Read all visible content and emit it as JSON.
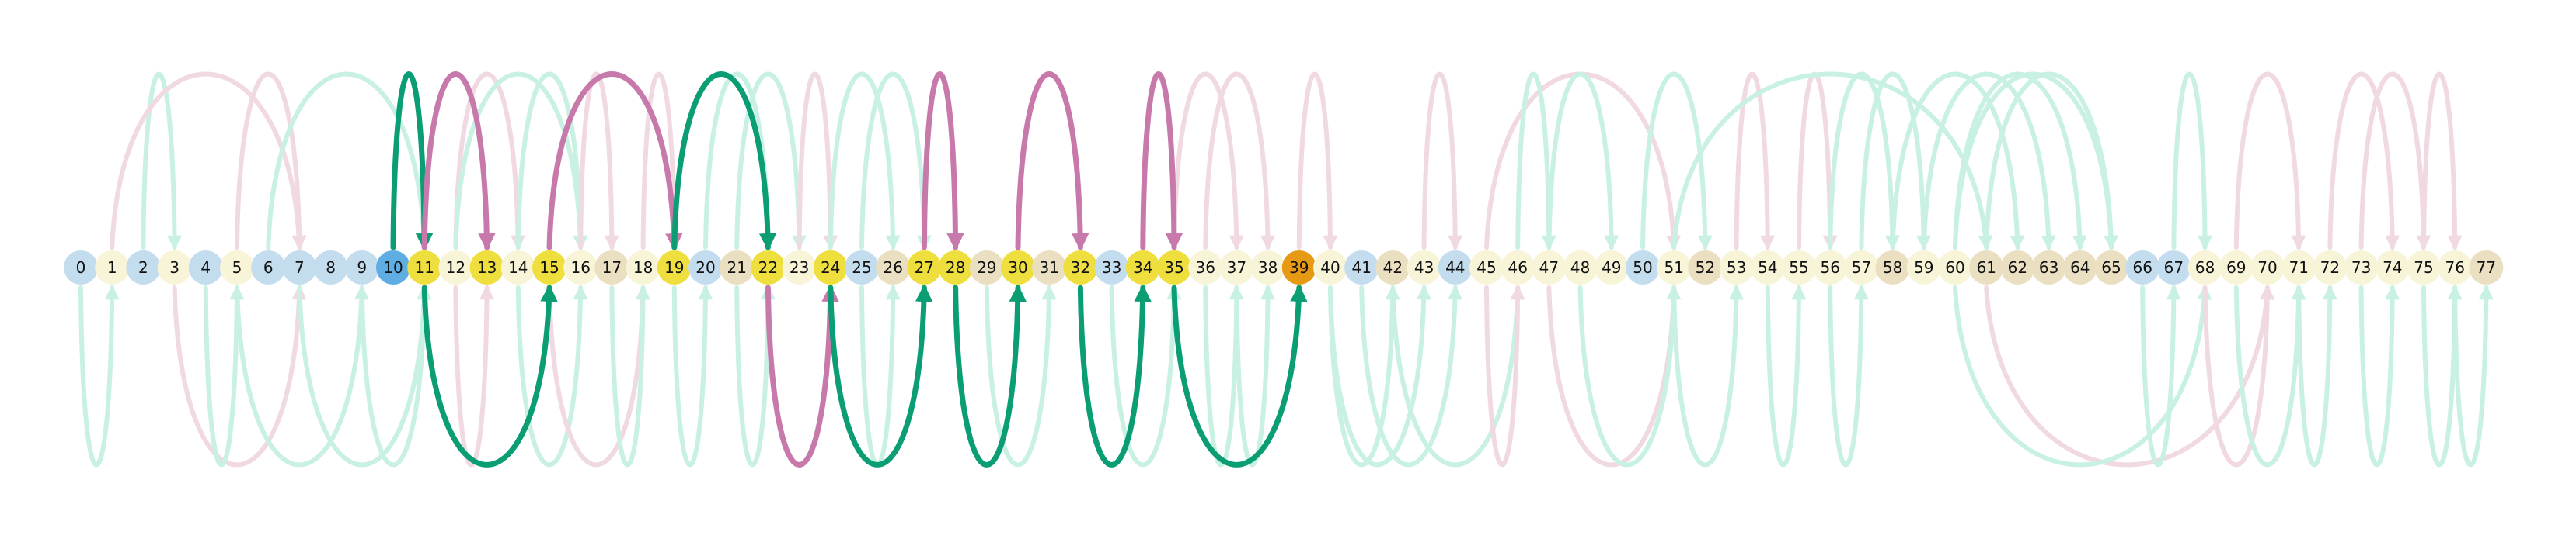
{
  "colors": {
    "node_blue": "#c3dcee",
    "node_cream": "#f7f4d8",
    "node_tan": "#ebdfc2",
    "node_yellow": "#efdf3e",
    "node_bright_blue": "#5eaee3",
    "node_orange": "#e69a13",
    "arc_green_strong": "#0b9e74",
    "arc_green_light": "#c8f1e3",
    "arc_pink_strong": "#c879ac",
    "arc_pink_light": "#f1d9e4",
    "label_text": "#111111"
  },
  "nodes": [
    {
      "label": "0",
      "color": "blue"
    },
    {
      "label": "1",
      "color": "cream"
    },
    {
      "label": "2",
      "color": "blue"
    },
    {
      "label": "3",
      "color": "cream"
    },
    {
      "label": "4",
      "color": "blue"
    },
    {
      "label": "5",
      "color": "cream"
    },
    {
      "label": "6",
      "color": "blue"
    },
    {
      "label": "7",
      "color": "blue"
    },
    {
      "label": "8",
      "color": "blue"
    },
    {
      "label": "9",
      "color": "blue"
    },
    {
      "label": "10",
      "color": "bright_blue"
    },
    {
      "label": "11",
      "color": "yellow"
    },
    {
      "label": "12",
      "color": "cream"
    },
    {
      "label": "13",
      "color": "yellow"
    },
    {
      "label": "14",
      "color": "cream"
    },
    {
      "label": "15",
      "color": "yellow"
    },
    {
      "label": "16",
      "color": "cream"
    },
    {
      "label": "17",
      "color": "tan"
    },
    {
      "label": "18",
      "color": "cream"
    },
    {
      "label": "19",
      "color": "yellow"
    },
    {
      "label": "20",
      "color": "blue"
    },
    {
      "label": "21",
      "color": "tan"
    },
    {
      "label": "22",
      "color": "yellow"
    },
    {
      "label": "23",
      "color": "cream"
    },
    {
      "label": "24",
      "color": "yellow"
    },
    {
      "label": "25",
      "color": "blue"
    },
    {
      "label": "26",
      "color": "tan"
    },
    {
      "label": "27",
      "color": "yellow"
    },
    {
      "label": "28",
      "color": "yellow"
    },
    {
      "label": "29",
      "color": "tan"
    },
    {
      "label": "30",
      "color": "yellow"
    },
    {
      "label": "31",
      "color": "tan"
    },
    {
      "label": "32",
      "color": "yellow"
    },
    {
      "label": "33",
      "color": "blue"
    },
    {
      "label": "34",
      "color": "yellow"
    },
    {
      "label": "35",
      "color": "yellow"
    },
    {
      "label": "36",
      "color": "cream"
    },
    {
      "label": "37",
      "color": "cream"
    },
    {
      "label": "38",
      "color": "cream"
    },
    {
      "label": "39",
      "color": "orange"
    },
    {
      "label": "40",
      "color": "cream"
    },
    {
      "label": "41",
      "color": "blue"
    },
    {
      "label": "42",
      "color": "tan"
    },
    {
      "label": "43",
      "color": "cream"
    },
    {
      "label": "44",
      "color": "blue"
    },
    {
      "label": "45",
      "color": "cream"
    },
    {
      "label": "46",
      "color": "cream"
    },
    {
      "label": "47",
      "color": "cream"
    },
    {
      "label": "48",
      "color": "cream"
    },
    {
      "label": "49",
      "color": "cream"
    },
    {
      "label": "50",
      "color": "blue"
    },
    {
      "label": "51",
      "color": "cream"
    },
    {
      "label": "52",
      "color": "tan"
    },
    {
      "label": "53",
      "color": "cream"
    },
    {
      "label": "54",
      "color": "cream"
    },
    {
      "label": "55",
      "color": "cream"
    },
    {
      "label": "56",
      "color": "cream"
    },
    {
      "label": "57",
      "color": "cream"
    },
    {
      "label": "58",
      "color": "tan"
    },
    {
      "label": "59",
      "color": "cream"
    },
    {
      "label": "60",
      "color": "cream"
    },
    {
      "label": "61",
      "color": "tan"
    },
    {
      "label": "62",
      "color": "tan"
    },
    {
      "label": "63",
      "color": "tan"
    },
    {
      "label": "64",
      "color": "tan"
    },
    {
      "label": "65",
      "color": "tan"
    },
    {
      "label": "66",
      "color": "blue"
    },
    {
      "label": "67",
      "color": "blue"
    },
    {
      "label": "68",
      "color": "cream"
    },
    {
      "label": "69",
      "color": "cream"
    },
    {
      "label": "70",
      "color": "cream"
    },
    {
      "label": "71",
      "color": "cream"
    },
    {
      "label": "72",
      "color": "cream"
    },
    {
      "label": "73",
      "color": "cream"
    },
    {
      "label": "74",
      "color": "cream"
    },
    {
      "label": "75",
      "color": "cream"
    },
    {
      "label": "76",
      "color": "cream"
    },
    {
      "label": "77",
      "color": "tan"
    }
  ],
  "arcs": [
    {
      "from": 10,
      "to": 11,
      "side": "top",
      "style": "green_strong"
    },
    {
      "from": 11,
      "to": 15,
      "side": "bottom",
      "style": "green_strong"
    },
    {
      "from": 11,
      "to": 13,
      "side": "top",
      "style": "pink_strong"
    },
    {
      "from": 15,
      "to": 19,
      "side": "top",
      "style": "pink_strong"
    },
    {
      "from": 19,
      "to": 22,
      "side": "top",
      "style": "green_strong"
    },
    {
      "from": 22,
      "to": 24,
      "side": "bottom",
      "style": "pink_strong"
    },
    {
      "from": 24,
      "to": 27,
      "side": "bottom",
      "style": "green_strong"
    },
    {
      "from": 27,
      "to": 28,
      "side": "top",
      "style": "pink_strong"
    },
    {
      "from": 28,
      "to": 30,
      "side": "bottom",
      "style": "green_strong"
    },
    {
      "from": 30,
      "to": 32,
      "side": "top",
      "style": "pink_strong"
    },
    {
      "from": 32,
      "to": 34,
      "side": "bottom",
      "style": "green_strong"
    },
    {
      "from": 34,
      "to": 35,
      "side": "top",
      "style": "pink_strong"
    },
    {
      "from": 35,
      "to": 39,
      "side": "bottom",
      "style": "green_strong"
    },
    {
      "from": 2,
      "to": 3,
      "side": "top",
      "style": "green_light"
    },
    {
      "from": 1,
      "to": 7,
      "side": "top",
      "style": "pink_light"
    },
    {
      "from": 5,
      "to": 7,
      "side": "top",
      "style": "pink_light"
    },
    {
      "from": 6,
      "to": 11,
      "side": "top",
      "style": "green_light"
    },
    {
      "from": 12,
      "to": 14,
      "side": "top",
      "style": "pink_light"
    },
    {
      "from": 12,
      "to": 16,
      "side": "top",
      "style": "green_light"
    },
    {
      "from": 14,
      "to": 16,
      "side": "top",
      "style": "green_light"
    },
    {
      "from": 16,
      "to": 17,
      "side": "top",
      "style": "pink_light"
    },
    {
      "from": 18,
      "to": 19,
      "side": "top",
      "style": "pink_light"
    },
    {
      "from": 20,
      "to": 22,
      "side": "top",
      "style": "green_light"
    },
    {
      "from": 21,
      "to": 23,
      "side": "top",
      "style": "green_light"
    },
    {
      "from": 23,
      "to": 24,
      "side": "top",
      "style": "pink_light"
    },
    {
      "from": 24,
      "to": 26,
      "side": "top",
      "style": "green_light"
    },
    {
      "from": 25,
      "to": 27,
      "side": "top",
      "style": "green_light"
    },
    {
      "from": 35,
      "to": 37,
      "side": "top",
      "style": "pink_light"
    },
    {
      "from": 36,
      "to": 38,
      "side": "top",
      "style": "pink_light"
    },
    {
      "from": 39,
      "to": 40,
      "side": "top",
      "style": "pink_light"
    },
    {
      "from": 43,
      "to": 44,
      "side": "top",
      "style": "pink_light"
    },
    {
      "from": 45,
      "to": 51,
      "side": "top",
      "style": "pink_light"
    },
    {
      "from": 46,
      "to": 47,
      "side": "top",
      "style": "green_light"
    },
    {
      "from": 47,
      "to": 49,
      "side": "top",
      "style": "green_light"
    },
    {
      "from": 50,
      "to": 52,
      "side": "top",
      "style": "green_light"
    },
    {
      "from": 53,
      "to": 54,
      "side": "top",
      "style": "pink_light"
    },
    {
      "from": 55,
      "to": 56,
      "side": "top",
      "style": "pink_light"
    },
    {
      "from": 56,
      "to": 58,
      "side": "top",
      "style": "green_light"
    },
    {
      "from": 57,
      "to": 59,
      "side": "top",
      "style": "green_light"
    },
    {
      "from": 51,
      "to": 61,
      "side": "top",
      "style": "green_light"
    },
    {
      "from": 58,
      "to": 62,
      "side": "top",
      "style": "green_light"
    },
    {
      "from": 59,
      "to": 63,
      "side": "top",
      "style": "green_light"
    },
    {
      "from": 60,
      "to": 64,
      "side": "top",
      "style": "green_light"
    },
    {
      "from": 60,
      "to": 65,
      "side": "top",
      "style": "green_light"
    },
    {
      "from": 61,
      "to": 65,
      "side": "top",
      "style": "green_light"
    },
    {
      "from": 67,
      "to": 68,
      "side": "top",
      "style": "green_light"
    },
    {
      "from": 69,
      "to": 71,
      "side": "top",
      "style": "pink_light"
    },
    {
      "from": 72,
      "to": 74,
      "side": "top",
      "style": "pink_light"
    },
    {
      "from": 73,
      "to": 75,
      "side": "top",
      "style": "pink_light"
    },
    {
      "from": 75,
      "to": 76,
      "side": "top",
      "style": "pink_light"
    },
    {
      "from": 0,
      "to": 1,
      "side": "bottom",
      "style": "green_light"
    },
    {
      "from": 3,
      "to": 7,
      "side": "bottom",
      "style": "pink_light"
    },
    {
      "from": 4,
      "to": 5,
      "side": "bottom",
      "style": "green_light"
    },
    {
      "from": 5,
      "to": 9,
      "side": "bottom",
      "style": "green_light"
    },
    {
      "from": 7,
      "to": 11,
      "side": "bottom",
      "style": "green_light"
    },
    {
      "from": 9,
      "to": 11,
      "side": "bottom",
      "style": "green_light"
    },
    {
      "from": 12,
      "to": 13,
      "side": "bottom",
      "style": "pink_light"
    },
    {
      "from": 14,
      "to": 16,
      "side": "bottom",
      "style": "green_light"
    },
    {
      "from": 15,
      "to": 18,
      "side": "bottom",
      "style": "pink_light"
    },
    {
      "from": 17,
      "to": 18,
      "side": "bottom",
      "style": "green_light"
    },
    {
      "from": 19,
      "to": 20,
      "side": "bottom",
      "style": "green_light"
    },
    {
      "from": 21,
      "to": 22,
      "side": "bottom",
      "style": "green_light"
    },
    {
      "from": 25,
      "to": 26,
      "side": "bottom",
      "style": "green_light"
    },
    {
      "from": 29,
      "to": 31,
      "side": "bottom",
      "style": "green_light"
    },
    {
      "from": 33,
      "to": 35,
      "side": "bottom",
      "style": "green_light"
    },
    {
      "from": 36,
      "to": 37,
      "side": "bottom",
      "style": "green_light"
    },
    {
      "from": 37,
      "to": 38,
      "side": "bottom",
      "style": "green_light"
    },
    {
      "from": 40,
      "to": 42,
      "side": "bottom",
      "style": "green_light"
    },
    {
      "from": 40,
      "to": 43,
      "side": "bottom",
      "style": "green_light"
    },
    {
      "from": 41,
      "to": 44,
      "side": "bottom",
      "style": "green_light"
    },
    {
      "from": 42,
      "to": 46,
      "side": "bottom",
      "style": "green_light"
    },
    {
      "from": 45,
      "to": 46,
      "side": "bottom",
      "style": "pink_light"
    },
    {
      "from": 47,
      "to": 51,
      "side": "bottom",
      "style": "pink_light"
    },
    {
      "from": 48,
      "to": 51,
      "side": "bottom",
      "style": "green_light"
    },
    {
      "from": 51,
      "to": 53,
      "side": "bottom",
      "style": "green_light"
    },
    {
      "from": 54,
      "to": 55,
      "side": "bottom",
      "style": "green_light"
    },
    {
      "from": 56,
      "to": 57,
      "side": "bottom",
      "style": "green_light"
    },
    {
      "from": 61,
      "to": 70,
      "side": "bottom",
      "style": "pink_light"
    },
    {
      "from": 60,
      "to": 68,
      "side": "bottom",
      "style": "green_light"
    },
    {
      "from": 66,
      "to": 67,
      "side": "bottom",
      "style": "green_light"
    },
    {
      "from": 68,
      "to": 70,
      "side": "bottom",
      "style": "pink_light"
    },
    {
      "from": 69,
      "to": 71,
      "side": "bottom",
      "style": "green_light"
    },
    {
      "from": 71,
      "to": 72,
      "side": "bottom",
      "style": "green_light"
    },
    {
      "from": 73,
      "to": 74,
      "side": "bottom",
      "style": "green_light"
    },
    {
      "from": 75,
      "to": 76,
      "side": "bottom",
      "style": "green_light"
    },
    {
      "from": 76,
      "to": 77,
      "side": "bottom",
      "style": "green_light"
    }
  ]
}
